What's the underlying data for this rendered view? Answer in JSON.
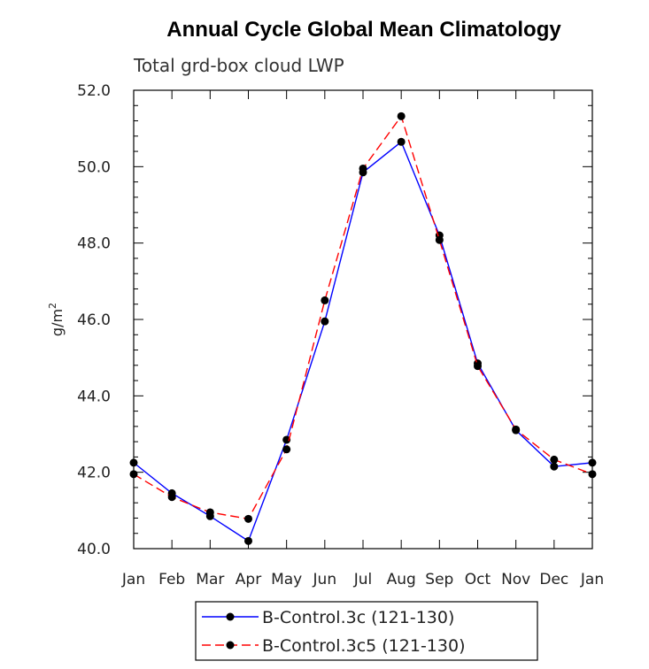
{
  "chart_data": {
    "type": "line",
    "title": "Annual Cycle Global Mean Climatology",
    "subtitle": "Total grd-box cloud LWP",
    "xlabel": "",
    "ylabel": "g/m",
    "ylabel_sup": "2",
    "categories": [
      "Jan",
      "Feb",
      "Mar",
      "Apr",
      "May",
      "Jun",
      "Jul",
      "Aug",
      "Sep",
      "Oct",
      "Nov",
      "Dec",
      "Jan"
    ],
    "ylim": [
      40.0,
      52.0
    ],
    "yticks": [
      40.0,
      42.0,
      44.0,
      46.0,
      48.0,
      50.0,
      52.0
    ],
    "ytick_labels": [
      "40.0",
      "42.0",
      "44.0",
      "46.0",
      "48.0",
      "50.0",
      "52.0"
    ],
    "series": [
      {
        "name": "B-Control.3c (121-130)",
        "color": "#0000ff",
        "dash": "solid",
        "values": [
          42.25,
          41.45,
          40.85,
          40.2,
          42.85,
          45.95,
          49.85,
          50.65,
          48.2,
          44.85,
          43.1,
          42.15,
          42.25
        ]
      },
      {
        "name": "B-Control.3c5 (121-130)",
        "color": "#ff0000",
        "dash": "dashed",
        "values": [
          41.95,
          41.35,
          40.95,
          40.78,
          42.6,
          46.5,
          49.95,
          51.32,
          48.08,
          44.78,
          43.12,
          42.33,
          41.95
        ]
      }
    ],
    "legend_position": "bottom"
  }
}
